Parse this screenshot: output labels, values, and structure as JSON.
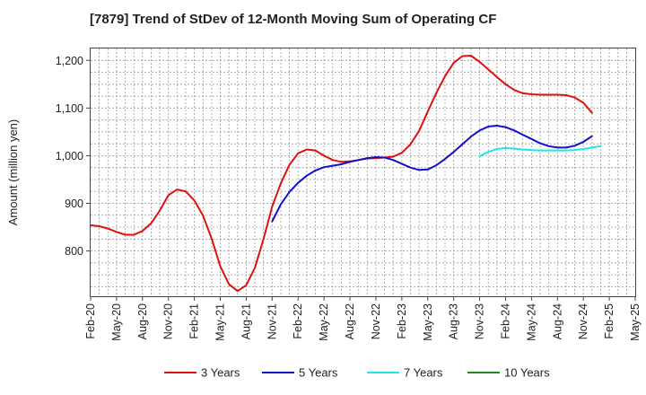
{
  "chart_data": {
    "type": "line",
    "title": "[7879]  Trend of StDev of 12-Month Moving Sum of Operating CF",
    "xlabel": "",
    "ylabel": "Amount (million yen)",
    "ylim": [
      705,
      1225
    ],
    "yticks": [
      800,
      900,
      1000,
      1100,
      1200
    ],
    "ytick_labels": [
      "800",
      "900",
      "1,000",
      "1,100",
      "1,200"
    ],
    "x_range_months": [
      0,
      63
    ],
    "xticks": [
      "Feb-20",
      "May-20",
      "Aug-20",
      "Nov-20",
      "Feb-21",
      "May-21",
      "Aug-21",
      "Nov-21",
      "Feb-22",
      "May-22",
      "Aug-22",
      "Nov-22",
      "Feb-23",
      "May-23",
      "Aug-23",
      "Nov-23",
      "Feb-24",
      "May-24",
      "Aug-24",
      "Nov-24",
      "Feb-25",
      "May-25"
    ],
    "grid": true,
    "legend_position": "bottom",
    "series": [
      {
        "name": "3 Years",
        "color": "#dd1111",
        "start_month": 0,
        "values": [
          854,
          852,
          847,
          840,
          834,
          834,
          842,
          858,
          885,
          917,
          929,
          925,
          906,
          874,
          826,
          768,
          730,
          716,
          728,
          765,
          825,
          893,
          942,
          981,
          1005,
          1013,
          1011,
          1000,
          991,
          987,
          988,
          991,
          994,
          995,
          996,
          998,
          1006,
          1024,
          1052,
          1093,
          1132,
          1167,
          1195,
          1209,
          1210,
          1197,
          1181,
          1165,
          1150,
          1138,
          1131,
          1129,
          1128,
          1128,
          1128,
          1127,
          1122,
          1111,
          1090
        ]
      },
      {
        "name": "5 Years",
        "color": "#1111cc",
        "start_month": 21,
        "values": [
          862,
          898,
          924,
          943,
          958,
          969,
          976,
          979,
          982,
          987,
          991,
          995,
          997,
          996,
          991,
          983,
          975,
          970,
          971,
          980,
          993,
          1008,
          1024,
          1040,
          1053,
          1061,
          1063,
          1060,
          1053,
          1044,
          1035,
          1026,
          1020,
          1017,
          1017,
          1021,
          1029,
          1041
        ]
      },
      {
        "name": "7 Years",
        "color": "#22e6e6",
        "start_month": 45,
        "values": [
          999,
          1008,
          1014,
          1016,
          1015,
          1013,
          1012,
          1011,
          1011,
          1011,
          1011,
          1012,
          1014,
          1017,
          1020
        ]
      },
      {
        "name": "10 Years",
        "color": "#228822",
        "start_month": null,
        "values": []
      }
    ]
  }
}
